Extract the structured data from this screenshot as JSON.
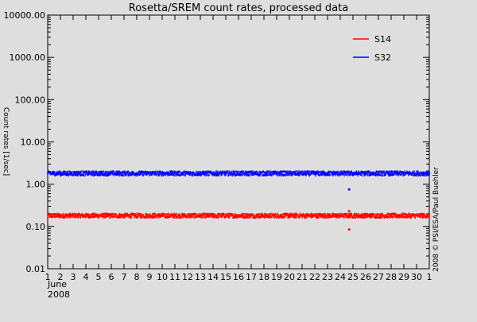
{
  "chart_data": {
    "type": "scatter",
    "title": "Rosetta/SREM count rates, processed data",
    "ylabel": "Count rates [1/sec]",
    "xlabel": "",
    "x_unit_label": "June",
    "year_label": "2008",
    "credit": "2008 © PSI/ESA/Paul Buehler",
    "y_scale": "log",
    "ylim": [
      0.01,
      10000
    ],
    "y_ticks": [
      0.01,
      0.1,
      1.0,
      10.0,
      100.0,
      1000.0,
      10000.0
    ],
    "y_tick_labels": [
      "0.01",
      "0.10",
      "1.00",
      "10.00",
      "100.00",
      "1000.00",
      "10000.00"
    ],
    "xlim": [
      1,
      31
    ],
    "x_ticks": [
      1,
      2,
      3,
      4,
      5,
      6,
      7,
      8,
      9,
      10,
      11,
      12,
      13,
      14,
      15,
      16,
      17,
      18,
      19,
      20,
      21,
      22,
      23,
      24,
      25,
      26,
      27,
      28,
      29,
      30,
      31
    ],
    "x_tick_labels": [
      "1",
      "2",
      "3",
      "4",
      "5",
      "6",
      "7",
      "8",
      "9",
      "10",
      "11",
      "12",
      "13",
      "14",
      "15",
      "16",
      "17",
      "18",
      "19",
      "20",
      "21",
      "22",
      "23",
      "24",
      "25",
      "26",
      "27",
      "28",
      "29",
      "30",
      "1"
    ],
    "grid": false,
    "legend_position": "top-right",
    "series": [
      {
        "name": "S14",
        "color": "#ff0000",
        "baseline": 0.18,
        "outliers": [
          {
            "x": 24.7,
            "y": 0.085
          },
          {
            "x": 24.7,
            "y": 0.23
          }
        ]
      },
      {
        "name": "S32",
        "color": "#0000ff",
        "baseline": 1.8,
        "outliers": [
          {
            "x": 24.7,
            "y": 0.75
          }
        ]
      }
    ]
  }
}
